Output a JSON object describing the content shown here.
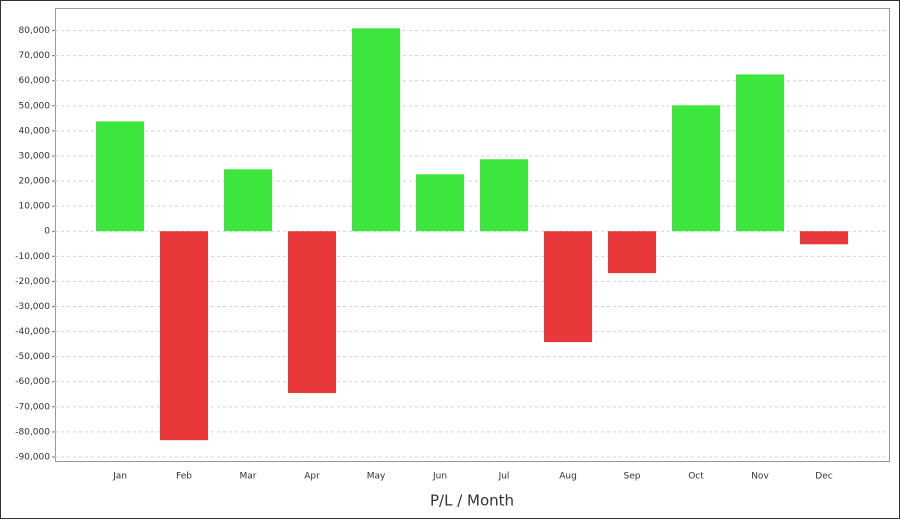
{
  "chart_data": {
    "type": "bar",
    "x_label": "P/L / Month",
    "categories": [
      "Jan",
      "Feb",
      "Mar",
      "Apr",
      "May",
      "Jun",
      "Jul",
      "Aug",
      "Sep",
      "Oct",
      "Nov",
      "Dec"
    ],
    "values": [
      43800,
      -83300,
      24700,
      -64500,
      80900,
      22700,
      28700,
      -44200,
      -16700,
      50200,
      62500,
      -5200
    ],
    "positive_color": "#3ce63c",
    "negative_color": "#e8383a",
    "ylim": [
      -92000,
      89000
    ],
    "yticks": [
      {
        "value": 80000,
        "label": "80,000"
      },
      {
        "value": 70000,
        "label": "70,000"
      },
      {
        "value": 60000,
        "label": "60,000"
      },
      {
        "value": 50000,
        "label": "50,000"
      },
      {
        "value": 40000,
        "label": "40,000"
      },
      {
        "value": 30000,
        "label": "30,000"
      },
      {
        "value": 20000,
        "label": "20,000"
      },
      {
        "value": 10000,
        "label": "10,000"
      },
      0,
      {
        "value": -10000,
        "label": "-10,000"
      },
      {
        "value": -20000,
        "label": "-20,000"
      },
      {
        "value": -30000,
        "label": "-30,000"
      },
      {
        "value": -40000,
        "label": "-40,000"
      },
      {
        "value": -50000,
        "label": "-50,000"
      },
      {
        "value": -60000,
        "label": "-60,000"
      },
      {
        "value": -70000,
        "label": "-70,000"
      },
      {
        "value": -80000,
        "label": "-80,000"
      },
      {
        "value": -90000,
        "label": "-90,000"
      }
    ],
    "grid": true
  }
}
